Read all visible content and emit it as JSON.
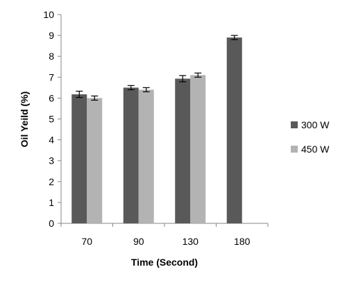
{
  "chart_data": {
    "type": "bar",
    "title": "",
    "xlabel": "Time (Second)",
    "ylabel": "Oil Yeild (%)",
    "categories": [
      "70",
      "90",
      "130",
      "180"
    ],
    "ylim": [
      0,
      10
    ],
    "yticks": [
      0,
      1,
      2,
      3,
      4,
      5,
      6,
      7,
      8,
      9,
      10
    ],
    "grid": false,
    "legend_position": "right",
    "series": [
      {
        "name": "300 W",
        "color": "#595959",
        "values": [
          6.18,
          6.5,
          6.93,
          8.9
        ],
        "errors": [
          0.15,
          0.1,
          0.15,
          0.1
        ]
      },
      {
        "name": "450 W",
        "color": "#b3b3b3",
        "values": [
          6.0,
          6.4,
          7.1,
          null
        ],
        "errors": [
          0.1,
          0.1,
          0.1,
          null
        ]
      }
    ]
  }
}
